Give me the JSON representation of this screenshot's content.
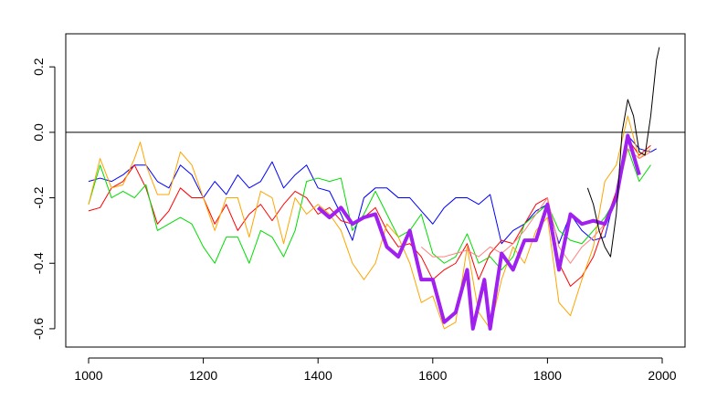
{
  "chart_data": {
    "type": "line",
    "xlim": [
      960.2,
      2039.8
    ],
    "ylim": [
      -0.656,
      0.301
    ],
    "xticks": [
      1000,
      1200,
      1400,
      1600,
      1800,
      2000
    ],
    "yticks": [
      -0.6,
      -0.4,
      -0.2,
      {
        "value": 0,
        "label": "0.0"
      },
      0.2
    ],
    "hline": 0,
    "series": [
      {
        "color": "#0000ff",
        "width": 1,
        "x": [
          1000,
          1020,
          1040,
          1060,
          1080,
          1100,
          1120,
          1140,
          1160,
          1180,
          1200,
          1220,
          1240,
          1260,
          1280,
          1300,
          1320,
          1340,
          1360,
          1380,
          1400,
          1420,
          1440,
          1460,
          1480,
          1500,
          1520,
          1540,
          1560,
          1580,
          1600,
          1620,
          1640,
          1660,
          1680,
          1700,
          1720,
          1740,
          1760,
          1780,
          1800,
          1820,
          1840,
          1860,
          1880,
          1900,
          1920,
          1940,
          1960,
          1980,
          1990
        ],
        "values": [
          -0.15,
          -0.14,
          -0.15,
          -0.13,
          -0.1,
          -0.1,
          -0.15,
          -0.17,
          -0.1,
          -0.13,
          -0.2,
          -0.15,
          -0.19,
          -0.13,
          -0.17,
          -0.15,
          -0.09,
          -0.17,
          -0.13,
          -0.1,
          -0.17,
          -0.18,
          -0.25,
          -0.33,
          -0.2,
          -0.17,
          -0.17,
          -0.2,
          -0.2,
          -0.24,
          -0.28,
          -0.23,
          -0.2,
          -0.2,
          -0.22,
          -0.19,
          -0.34,
          -0.3,
          -0.28,
          -0.24,
          -0.22,
          -0.34,
          -0.25,
          -0.3,
          -0.33,
          -0.32,
          -0.18,
          -0.01,
          -0.05,
          -0.06,
          -0.05
        ]
      },
      {
        "color": "#ff0000",
        "width": 1,
        "x": [
          1000,
          1020,
          1040,
          1060,
          1080,
          1100,
          1120,
          1140,
          1160,
          1180,
          1200,
          1220,
          1240,
          1260,
          1280,
          1300,
          1320,
          1340,
          1360,
          1380,
          1400,
          1420,
          1440,
          1460,
          1480,
          1500,
          1520,
          1540,
          1560,
          1580,
          1600,
          1620,
          1640,
          1660,
          1680,
          1700,
          1720,
          1740,
          1760,
          1780,
          1800,
          1820,
          1840,
          1860,
          1880,
          1900,
          1920,
          1940,
          1960,
          1980
        ],
        "values": [
          -0.24,
          -0.23,
          -0.17,
          -0.15,
          -0.1,
          -0.17,
          -0.28,
          -0.24,
          -0.17,
          -0.2,
          -0.2,
          -0.28,
          -0.22,
          -0.3,
          -0.25,
          -0.22,
          -0.27,
          -0.22,
          -0.18,
          -0.2,
          -0.25,
          -0.23,
          -0.27,
          -0.28,
          -0.26,
          -0.23,
          -0.3,
          -0.35,
          -0.34,
          -0.38,
          -0.45,
          -0.42,
          -0.4,
          -0.34,
          -0.45,
          -0.37,
          -0.33,
          -0.34,
          -0.28,
          -0.22,
          -0.2,
          -0.4,
          -0.47,
          -0.44,
          -0.38,
          -0.28,
          -0.18,
          -0.02,
          -0.07,
          -0.04
        ]
      },
      {
        "color": "#00dd00",
        "width": 1,
        "x": [
          1000,
          1020,
          1040,
          1060,
          1080,
          1100,
          1120,
          1140,
          1160,
          1180,
          1200,
          1220,
          1240,
          1260,
          1280,
          1300,
          1320,
          1340,
          1360,
          1380,
          1400,
          1420,
          1440,
          1460,
          1480,
          1500,
          1520,
          1540,
          1560,
          1580,
          1600,
          1620,
          1640,
          1660,
          1680,
          1700,
          1720,
          1740,
          1760,
          1780,
          1800,
          1820,
          1840,
          1860,
          1880,
          1900,
          1920,
          1940,
          1960,
          1980
        ],
        "values": [
          -0.22,
          -0.1,
          -0.2,
          -0.18,
          -0.2,
          -0.16,
          -0.3,
          -0.28,
          -0.26,
          -0.28,
          -0.35,
          -0.4,
          -0.32,
          -0.32,
          -0.4,
          -0.3,
          -0.32,
          -0.38,
          -0.3,
          -0.15,
          -0.14,
          -0.15,
          -0.14,
          -0.3,
          -0.25,
          -0.18,
          -0.25,
          -0.32,
          -0.3,
          -0.25,
          -0.37,
          -0.4,
          -0.38,
          -0.31,
          -0.4,
          -0.38,
          -0.42,
          -0.38,
          -0.28,
          -0.25,
          -0.22,
          -0.3,
          -0.33,
          -0.34,
          -0.3,
          -0.26,
          -0.2,
          -0.05,
          -0.15,
          -0.1
        ]
      },
      {
        "color": "#ffa500",
        "width": 1,
        "x": [
          1000,
          1020,
          1040,
          1060,
          1080,
          1090,
          1100,
          1120,
          1140,
          1160,
          1180,
          1200,
          1220,
          1240,
          1260,
          1280,
          1300,
          1320,
          1340,
          1360,
          1380,
          1400,
          1420,
          1440,
          1460,
          1480,
          1500,
          1520,
          1540,
          1560,
          1580,
          1600,
          1620,
          1640,
          1660,
          1680,
          1700,
          1720,
          1740,
          1760,
          1780,
          1800,
          1820,
          1840,
          1860,
          1880,
          1900,
          1920,
          1940,
          1960,
          1980
        ],
        "values": [
          -0.22,
          -0.08,
          -0.17,
          -0.16,
          -0.08,
          -0.03,
          -0.1,
          -0.19,
          -0.19,
          -0.06,
          -0.1,
          -0.2,
          -0.3,
          -0.2,
          -0.2,
          -0.32,
          -0.18,
          -0.2,
          -0.34,
          -0.2,
          -0.25,
          -0.22,
          -0.25,
          -0.3,
          -0.4,
          -0.45,
          -0.4,
          -0.28,
          -0.32,
          -0.4,
          -0.52,
          -0.5,
          -0.6,
          -0.58,
          -0.35,
          -0.55,
          -0.6,
          -0.45,
          -0.35,
          -0.4,
          -0.3,
          -0.26,
          -0.52,
          -0.56,
          -0.45,
          -0.35,
          -0.15,
          -0.1,
          0.05,
          -0.08,
          -0.05
        ]
      },
      {
        "color": "#ff8080",
        "width": 1,
        "x": [
          1580,
          1600,
          1620,
          1640,
          1660,
          1680,
          1700,
          1720,
          1740,
          1760,
          1780,
          1800,
          1820,
          1840,
          1860,
          1880,
          1900,
          1920,
          1940,
          1960,
          1980
        ],
        "values": [
          -0.35,
          -0.38,
          -0.38,
          -0.37,
          -0.36,
          -0.38,
          -0.35,
          -0.37,
          -0.34,
          -0.3,
          -0.25,
          -0.2,
          -0.35,
          -0.4,
          -0.35,
          -0.32,
          -0.28,
          -0.2,
          -0.05,
          -0.08,
          -0.06
        ]
      },
      {
        "color": "#a020f0",
        "width": 4,
        "x": [
          1400,
          1420,
          1440,
          1460,
          1480,
          1500,
          1520,
          1540,
          1560,
          1580,
          1600,
          1620,
          1640,
          1660,
          1670,
          1690,
          1700,
          1720,
          1740,
          1760,
          1780,
          1800,
          1820,
          1840,
          1860,
          1880,
          1900,
          1920,
          1940,
          1960
        ],
        "values": [
          -0.23,
          -0.26,
          -0.23,
          -0.28,
          -0.26,
          -0.25,
          -0.35,
          -0.38,
          -0.3,
          -0.45,
          -0.45,
          -0.58,
          -0.55,
          -0.42,
          -0.6,
          -0.45,
          -0.6,
          -0.37,
          -0.42,
          -0.33,
          -0.33,
          -0.22,
          -0.42,
          -0.25,
          -0.28,
          -0.27,
          -0.28,
          -0.2,
          -0.01,
          -0.13
        ]
      },
      {
        "color": "#000000",
        "width": 1,
        "x": [
          1870,
          1880,
          1890,
          1900,
          1910,
          1920,
          1930,
          1940,
          1950,
          1960,
          1970,
          1980,
          1990,
          1995
        ],
        "values": [
          -0.17,
          -0.22,
          -0.3,
          -0.35,
          -0.38,
          -0.25,
          0.0,
          0.1,
          0.05,
          -0.06,
          -0.07,
          0.05,
          0.22,
          0.26
        ]
      }
    ]
  }
}
